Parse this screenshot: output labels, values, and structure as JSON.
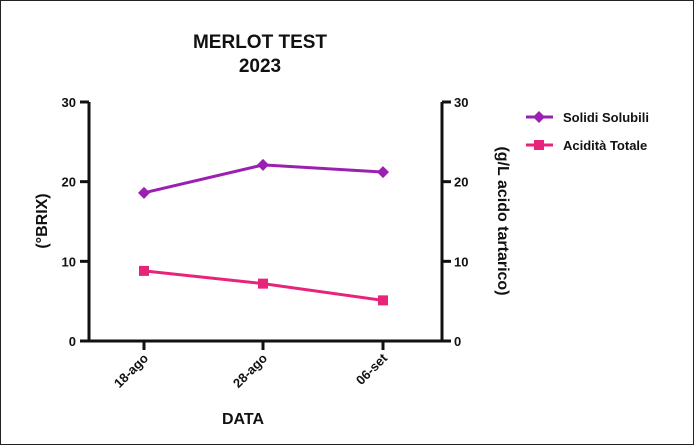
{
  "chart_data": {
    "type": "line",
    "title": "MERLOT TEST",
    "subtitle": "2023",
    "categories": [
      "18-ago",
      "28-ago",
      "06-set"
    ],
    "xlabel": "DATA",
    "ylabel_left": "(°BRIX)",
    "ylabel_right": "(g/L acido tartarico)",
    "ylim_left": [
      0,
      30
    ],
    "ylim_right": [
      0,
      30
    ],
    "yticks": [
      "0",
      "10",
      "20",
      "30"
    ],
    "grid": false,
    "legend_position": "top-right",
    "series": [
      {
        "name": "Solidi Solubili",
        "axis": "left",
        "marker": "diamond",
        "color": "#9b1fb0",
        "values": [
          18.6,
          22.1,
          21.2
        ]
      },
      {
        "name": "Acidità Totale",
        "axis": "right",
        "marker": "square",
        "color": "#e8247a",
        "values": [
          8.8,
          7.2,
          5.1
        ]
      }
    ]
  }
}
